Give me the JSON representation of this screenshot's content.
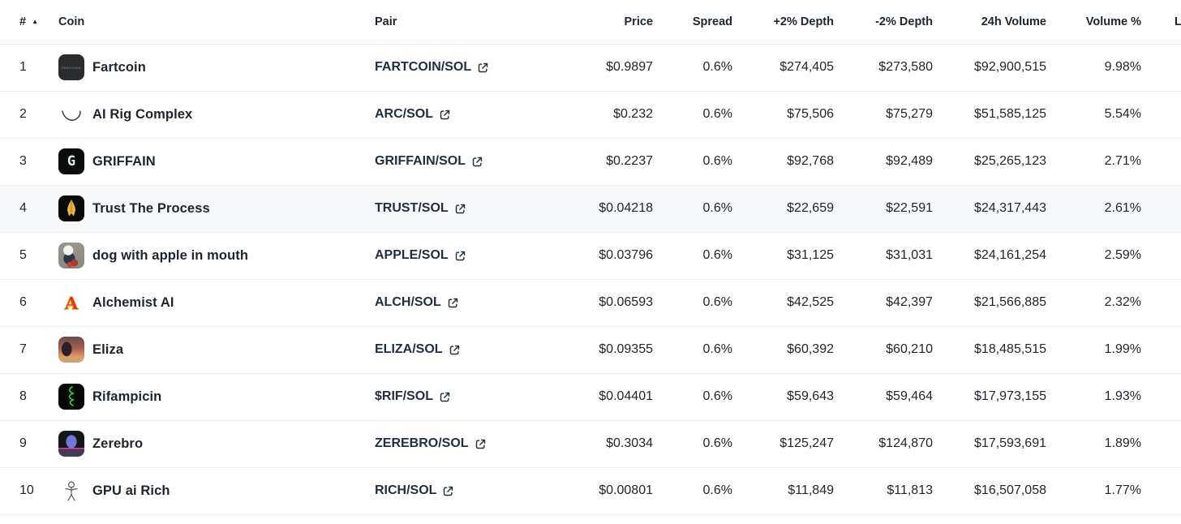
{
  "table": {
    "headers": {
      "rank": "#",
      "coin": "Coin",
      "pair": "Pair",
      "price": "Price",
      "spread": "Spread",
      "depth_plus": "+2% Depth",
      "depth_minus": "-2% Depth",
      "volume_24h": "24h Volume",
      "volume_pct": "Volume %",
      "partial": "L"
    },
    "sort": {
      "column": "#",
      "direction": "ascending",
      "indicator": "▲"
    },
    "rows": [
      {
        "rank": "1",
        "name": "Fartcoin",
        "pair": "FARTCOIN/SOL",
        "price": "$0.9897",
        "spread": "0.6%",
        "depth_plus": "$274,405",
        "depth_minus": "$273,580",
        "volume_24h": "$92,900,515",
        "volume_pct": "9.98%",
        "highlighted": false,
        "icon": {
          "name": "fartcoin-icon",
          "kind": "fartcoin",
          "bg": "#2a2c2e",
          "fg": "#7a7d80",
          "glyph": "FARTCOIN"
        }
      },
      {
        "rank": "2",
        "name": "AI Rig Complex",
        "pair": "ARC/SOL",
        "price": "$0.232",
        "spread": "0.6%",
        "depth_plus": "$75,506",
        "depth_minus": "$75,279",
        "volume_24h": "$51,585,125",
        "volume_pct": "5.54%",
        "highlighted": false,
        "icon": {
          "name": "ai-rig-complex-icon",
          "kind": "arc",
          "bg": "#ffffff",
          "fg": "#2e2e2e",
          "glyph": ""
        }
      },
      {
        "rank": "3",
        "name": "GRIFFAIN",
        "pair": "GRIFFAIN/SOL",
        "price": "$0.2237",
        "spread": "0.6%",
        "depth_plus": "$92,768",
        "depth_minus": "$92,489",
        "volume_24h": "$25,265,123",
        "volume_pct": "2.71%",
        "highlighted": false,
        "icon": {
          "name": "griffain-icon",
          "kind": "griffain",
          "bg": "#0a0c0b",
          "fg": "#e6efe8",
          "glyph": "G"
        }
      },
      {
        "rank": "4",
        "name": "Trust The Process",
        "pair": "TRUST/SOL",
        "price": "$0.04218",
        "spread": "0.6%",
        "depth_plus": "$22,659",
        "depth_minus": "$22,591",
        "volume_24h": "$24,317,443",
        "volume_pct": "2.61%",
        "highlighted": true,
        "icon": {
          "name": "trust-the-process-icon",
          "kind": "pray",
          "bg": "#0a0a0a",
          "fg": "#e8b73a",
          "glyph": ""
        }
      },
      {
        "rank": "5",
        "name": "dog with apple in mouth",
        "pair": "APPLE/SOL",
        "price": "$0.03796",
        "spread": "0.6%",
        "depth_plus": "$31,125",
        "depth_minus": "$31,031",
        "volume_24h": "$24,161,254",
        "volume_pct": "2.59%",
        "highlighted": false,
        "icon": {
          "name": "dog-with-apple-icon",
          "kind": "dog",
          "bg": "#8f8b85",
          "fg": "#b6352c",
          "glyph": ""
        }
      },
      {
        "rank": "6",
        "name": "Alchemist AI",
        "pair": "ALCH/SOL",
        "price": "$0.06593",
        "spread": "0.6%",
        "depth_plus": "$42,525",
        "depth_minus": "$42,397",
        "volume_24h": "$21,566,885",
        "volume_pct": "2.32%",
        "highlighted": false,
        "icon": {
          "name": "alchemist-ai-icon",
          "kind": "alch",
          "bg": "#ffffff",
          "fg": "#e0391b",
          "glyph": "A"
        }
      },
      {
        "rank": "7",
        "name": "Eliza",
        "pair": "ELIZA/SOL",
        "price": "$0.09355",
        "spread": "0.6%",
        "depth_plus": "$60,392",
        "depth_minus": "$60,210",
        "volume_24h": "$18,485,515",
        "volume_pct": "1.99%",
        "highlighted": false,
        "icon": {
          "name": "eliza-icon",
          "kind": "eliza",
          "bg": "#a06050",
          "fg": "#2d1f25",
          "glyph": ""
        }
      },
      {
        "rank": "8",
        "name": "Rifampicin",
        "pair": "$RIF/SOL",
        "price": "$0.04401",
        "spread": "0.6%",
        "depth_plus": "$59,643",
        "depth_minus": "$59,464",
        "volume_24h": "$17,973,155",
        "volume_pct": "1.93%",
        "highlighted": false,
        "icon": {
          "name": "rifampicin-icon",
          "kind": "rif",
          "bg": "#060806",
          "fg": "#3ec93e",
          "glyph": ""
        }
      },
      {
        "rank": "9",
        "name": "Zerebro",
        "pair": "ZEREBRO/SOL",
        "price": "$0.3034",
        "spread": "0.6%",
        "depth_plus": "$125,247",
        "depth_minus": "$124,870",
        "volume_24h": "$17,593,691",
        "volume_pct": "1.89%",
        "highlighted": false,
        "icon": {
          "name": "zerebro-icon",
          "kind": "zerebro",
          "bg": "#16171c",
          "fg": "#7678d8",
          "glyph": ""
        }
      },
      {
        "rank": "10",
        "name": "GPU ai Rich",
        "pair": "RICH/SOL",
        "price": "$0.00801",
        "spread": "0.6%",
        "depth_plus": "$11,849",
        "depth_minus": "$11,813",
        "volume_24h": "$16,507,058",
        "volume_pct": "1.77%",
        "highlighted": false,
        "icon": {
          "name": "gpu-ai-rich-icon",
          "kind": "stick",
          "bg": "#ffffff",
          "fg": "#565656",
          "glyph": ""
        }
      }
    ]
  },
  "colors": {
    "row_highlight": "#f7f8fa",
    "row_border": "#eef1f4",
    "header_border": "#e9edf1",
    "text_primary": "#21262c",
    "coin_name_text": "#1e252c",
    "pair_link_text": "#232f3d"
  }
}
